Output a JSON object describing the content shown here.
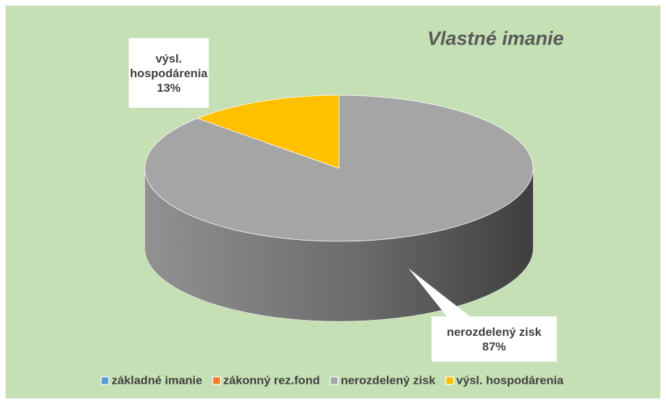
{
  "chart_data": {
    "type": "pie3d",
    "title": "Vlastné imanie",
    "categories": [
      "základné imanie",
      "zákonný rez.fond",
      "nerozdelený zisk",
      "výsl. hospodárenia"
    ],
    "values": [
      0,
      0,
      87,
      13
    ],
    "value_labels": [
      null,
      null,
      "87%",
      "13%"
    ],
    "colors": [
      "#5b9bd5",
      "#ed7d31",
      "#a5a5a5",
      "#ffc000"
    ],
    "legend": "bottom"
  }
}
